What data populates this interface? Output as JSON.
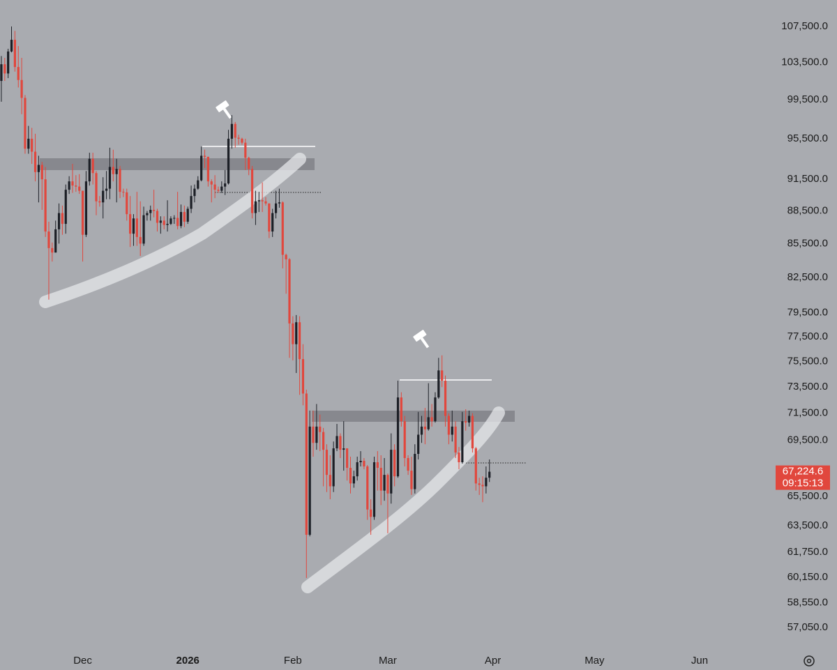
{
  "chart_data": {
    "type": "candlestick",
    "up_color": "#1c1f26",
    "down_color": "#e1473d",
    "log_scale": true,
    "xlim": [
      -0.4,
      223.9
    ],
    "xticks": [
      {
        "value": 24,
        "label": "Dec"
      },
      {
        "value": 55,
        "label": "2026"
      },
      {
        "value": 86,
        "label": "Feb"
      },
      {
        "value": 114,
        "label": "Mar"
      },
      {
        "value": 145,
        "label": "Apr"
      },
      {
        "value": 175,
        "label": "May"
      },
      {
        "value": 206,
        "label": "Jun"
      }
    ],
    "ylim": [
      55800,
      110540
    ],
    "yticks": [
      {
        "value": 107500,
        "label": "107,500.0"
      },
      {
        "value": 103500,
        "label": "103,500.0"
      },
      {
        "value": 99500,
        "label": "99,500.0"
      },
      {
        "value": 95500,
        "label": "95,500.0"
      },
      {
        "value": 91500,
        "label": "91,500.0"
      },
      {
        "value": 88500,
        "label": "88,500.0"
      },
      {
        "value": 85500,
        "label": "85,500.0"
      },
      {
        "value": 82500,
        "label": "82,500.0"
      },
      {
        "value": 79500,
        "label": "79,500.0"
      },
      {
        "value": 77500,
        "label": "77,500.0"
      },
      {
        "value": 75500,
        "label": "75,500.0"
      },
      {
        "value": 73500,
        "label": "73,500.0"
      },
      {
        "value": 71500,
        "label": "71,500.0"
      },
      {
        "value": 69500,
        "label": "69,500.0"
      },
      {
        "value": 65500,
        "label": "65,500.0"
      },
      {
        "value": 63500,
        "label": "63,500.0"
      },
      {
        "value": 61750,
        "label": "61,750.0"
      },
      {
        "value": 60150,
        "label": "60,150.0"
      },
      {
        "value": 58550,
        "label": "58,550.0"
      },
      {
        "value": 57050,
        "label": "57,050.0"
      }
    ],
    "last_price_label": "67,224.6",
    "countdown": "09:15:13",
    "open": [
      101500,
      103300,
      102300,
      104700,
      106000,
      103000,
      101600,
      99700,
      94500,
      95500,
      94200,
      92200,
      92900,
      91500,
      86600,
      85100,
      84700,
      86800,
      88300,
      87300,
      90500,
      91300,
      90900,
      90800,
      90400,
      86300,
      91300,
      93500,
      92100,
      89400,
      89300,
      90400,
      90600,
      92700,
      92000,
      92500,
      90300,
      90250,
      88200,
      86400,
      87800,
      86100,
      85500,
      88100,
      88300,
      88600,
      88500,
      87400,
      87600,
      87200,
      87300,
      87800,
      87850,
      87100,
      88400,
      87500,
      88700,
      89900,
      90600,
      91400,
      93800,
      93700,
      91300,
      91000,
      90500,
      90400,
      90800,
      91100,
      95500,
      97000,
      95600,
      95500,
      95100,
      93600,
      92500,
      88300,
      89400,
      89500,
      89400,
      89200,
      86600,
      88300,
      89200,
      89300,
      84500,
      84100,
      78600,
      76900,
      78700,
      75700,
      73000,
      62900,
      70500,
      69300,
      70500,
      70100,
      68800,
      67000,
      66200,
      68900,
      69800,
      68800,
      68900,
      67500,
      66400,
      66900,
      67900,
      68000,
      67600,
      64600,
      64100,
      67900,
      67500,
      65900,
      67000,
      65700,
      68800,
      66900,
      72700,
      70900,
      68200,
      67300,
      66000,
      68500,
      69900,
      70500,
      70300,
      71200,
      70900,
      72700,
      74800,
      74000,
      71300,
      69900,
      70500,
      68600,
      67900,
      70900,
      70800,
      71300,
      68900,
      66400,
      66300,
      66200,
      66800
    ],
    "high": [
      104200,
      104000,
      105000,
      107500,
      107000,
      105300,
      104000,
      100000,
      96800,
      96600,
      96000,
      93800,
      93200,
      92700,
      87500,
      85600,
      87600,
      89200,
      89000,
      91000,
      91800,
      93000,
      91900,
      92000,
      90400,
      92300,
      94100,
      94100,
      92300,
      89900,
      91700,
      92300,
      94600,
      94400,
      93500,
      92800,
      90600,
      90600,
      89900,
      88200,
      90300,
      89400,
      88900,
      88500,
      89000,
      90500,
      88700,
      88000,
      88000,
      89500,
      88000,
      88100,
      90300,
      89100,
      89000,
      88900,
      90900,
      91000,
      91800,
      94700,
      94400,
      93700,
      91500,
      91900,
      90800,
      91300,
      92400,
      96400,
      97900,
      97200,
      95900,
      95600,
      95500,
      93700,
      92800,
      90400,
      90300,
      91200,
      89800,
      89200,
      88700,
      90400,
      90600,
      89400,
      84600,
      84200,
      79200,
      79300,
      79200,
      76900,
      73300,
      71700,
      71700,
      72200,
      71400,
      70400,
      69200,
      68400,
      69400,
      70700,
      70000,
      70900,
      68900,
      68300,
      67300,
      68300,
      68700,
      68200,
      67700,
      65300,
      68300,
      68700,
      68400,
      68200,
      67100,
      70000,
      69200,
      74000,
      73100,
      71300,
      68400,
      68300,
      69200,
      71600,
      71300,
      71900,
      73800,
      72200,
      73100,
      75800,
      76000,
      74400,
      71500,
      71700,
      70900,
      69000,
      71600,
      71800,
      71700,
      71500,
      69000,
      66800,
      66900,
      67600,
      68100
    ],
    "low": [
      99300,
      101500,
      101800,
      104600,
      102500,
      100800,
      98000,
      94000,
      94000,
      93000,
      91300,
      89300,
      88600,
      86100,
      80600,
      83900,
      84700,
      85500,
      86300,
      86400,
      90100,
      90200,
      90300,
      90100,
      83900,
      86100,
      90900,
      91000,
      88100,
      88900,
      87800,
      89600,
      89600,
      91300,
      89300,
      89700,
      89800,
      87600,
      85200,
      85300,
      85300,
      84400,
      85300,
      87600,
      87600,
      87900,
      86600,
      86400,
      86800,
      86600,
      87200,
      87300,
      86800,
      86900,
      87000,
      87300,
      88300,
      89300,
      90500,
      91300,
      92600,
      90800,
      89300,
      89700,
      90200,
      90200,
      90000,
      91000,
      94500,
      94600,
      94900,
      94900,
      92400,
      91900,
      87800,
      87200,
      88400,
      88400,
      89000,
      86000,
      86100,
      87800,
      88800,
      83300,
      81100,
      75800,
      75600,
      74600,
      72900,
      72100,
      60100,
      62800,
      68300,
      68800,
      68700,
      66200,
      65800,
      65300,
      65800,
      68700,
      68200,
      67300,
      66600,
      65700,
      66100,
      66600,
      67600,
      67400,
      63900,
      62900,
      63900,
      65900,
      64900,
      65200,
      63000,
      65000,
      66200,
      66800,
      70500,
      67600,
      67000,
      65600,
      65700,
      68100,
      69300,
      69200,
      70200,
      70500,
      70800,
      72600,
      73500,
      70500,
      69200,
      69400,
      68200,
      67400,
      67800,
      70200,
      70500,
      68600,
      65900,
      65600,
      65100,
      65700,
      66500
    ],
    "close": [
      103300,
      102300,
      104700,
      106000,
      103000,
      101600,
      99700,
      94500,
      95500,
      94200,
      92200,
      92900,
      91500,
      86600,
      85100,
      84700,
      86800,
      88300,
      87300,
      90500,
      91300,
      90900,
      90800,
      90400,
      86300,
      91300,
      93500,
      92100,
      89400,
      89300,
      90400,
      90600,
      92700,
      92000,
      92500,
      90300,
      90250,
      88200,
      86400,
      87800,
      86100,
      85500,
      88100,
      88300,
      88600,
      88500,
      87400,
      87600,
      87200,
      87300,
      87800,
      87850,
      87100,
      88400,
      87500,
      88700,
      89900,
      90600,
      91400,
      93800,
      93700,
      91300,
      91000,
      90500,
      90400,
      90800,
      91100,
      95500,
      97000,
      95600,
      95500,
      95100,
      93600,
      92500,
      88300,
      89400,
      89500,
      89400,
      89200,
      86600,
      88300,
      89200,
      89300,
      84500,
      84100,
      78600,
      76900,
      78700,
      75700,
      73000,
      62900,
      70500,
      69300,
      70500,
      70100,
      68800,
      67000,
      66200,
      68900,
      69800,
      68800,
      68900,
      67500,
      66400,
      66900,
      67900,
      68000,
      67600,
      64600,
      64100,
      67900,
      67500,
      65900,
      67000,
      65700,
      68800,
      66900,
      72700,
      70900,
      68200,
      67300,
      66000,
      68500,
      69900,
      70500,
      70300,
      71200,
      70900,
      72700,
      74800,
      74000,
      71300,
      69900,
      70500,
      68600,
      67900,
      70900,
      70800,
      71300,
      68900,
      66400,
      66300,
      66200,
      66800,
      67224.6
    ]
  }
}
